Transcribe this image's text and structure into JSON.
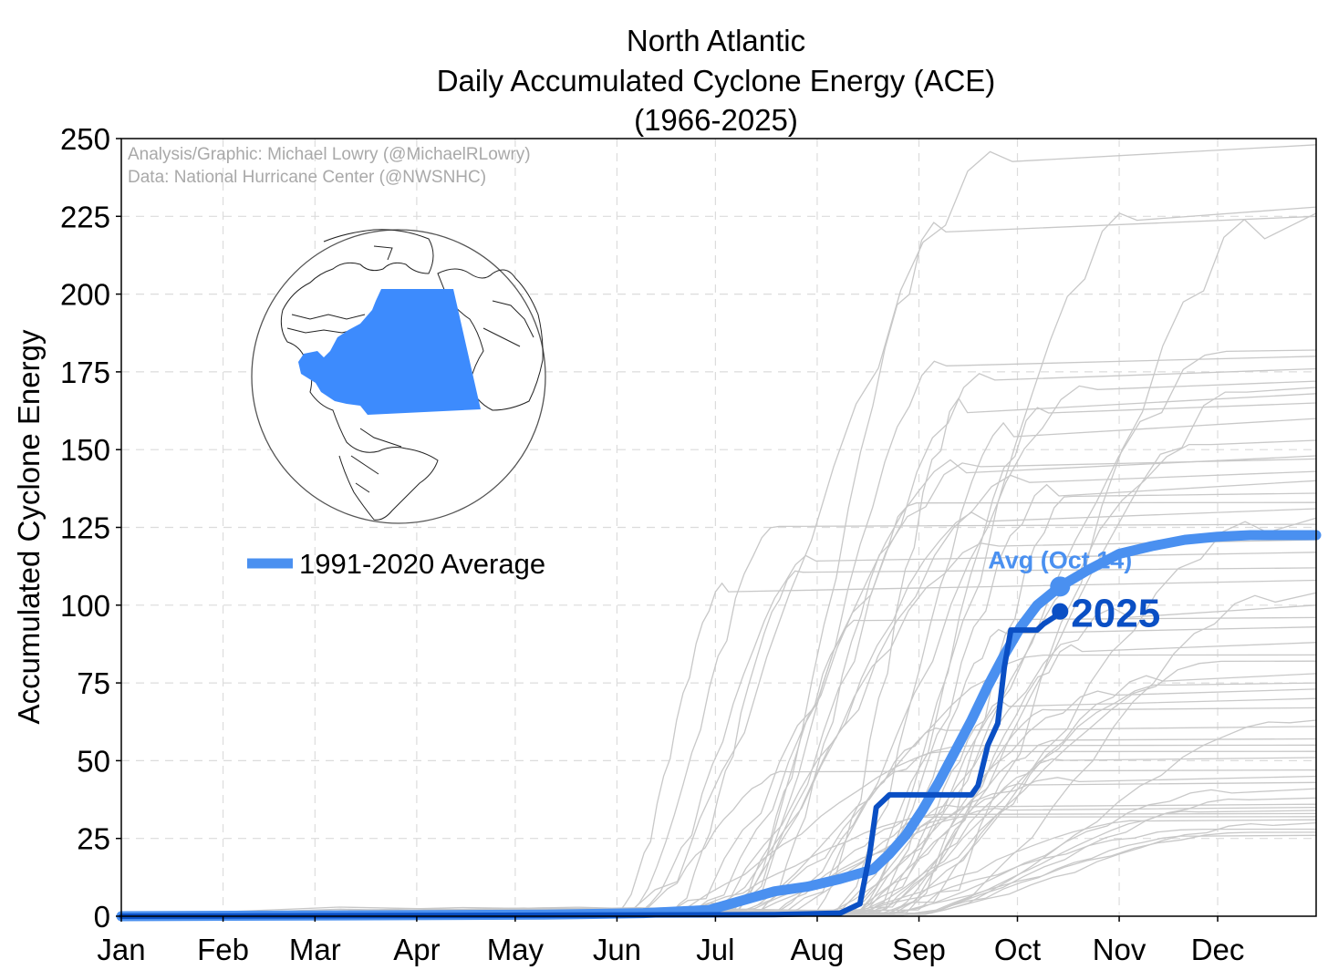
{
  "chart_data": {
    "type": "line",
    "title": [
      "North Atlantic",
      "Daily Accumulated Cyclone Energy (ACE)",
      "(1966-2025)"
    ],
    "ylabel": "Accumulated Cyclone Energy",
    "xlabel": "",
    "ylim": [
      0,
      250
    ],
    "xlim": [
      1,
      365
    ],
    "yticks": [
      0,
      25,
      50,
      75,
      100,
      125,
      150,
      175,
      200,
      225,
      250
    ],
    "xticks": [
      {
        "label": "Jan",
        "day": 1
      },
      {
        "label": "Feb",
        "day": 32
      },
      {
        "label": "Mar",
        "day": 60
      },
      {
        "label": "Apr",
        "day": 91
      },
      {
        "label": "May",
        "day": 121
      },
      {
        "label": "Jun",
        "day": 152
      },
      {
        "label": "Jul",
        "day": 182
      },
      {
        "label": "Aug",
        "day": 213
      },
      {
        "label": "Sep",
        "day": 244
      },
      {
        "label": "Oct",
        "day": 274
      },
      {
        "label": "Nov",
        "day": 305
      },
      {
        "label": "Dec",
        "day": 335
      }
    ],
    "grid": true,
    "credits": [
      "Analysis/Graphic: Michael Lowry (@MichaelRLowry)",
      "Data: National Hurricane Center (@NWSNHC)"
    ],
    "legend": {
      "label": "1991-2020 Average",
      "placement": "center-left"
    },
    "colors": {
      "average": "#4a90f0",
      "current": "#0a4fc4",
      "history": "#c8c8c8",
      "region": "#3d8bfd"
    },
    "series": [
      {
        "name": "1991-2020 Average",
        "role": "average",
        "x": [
          1,
          130,
          160,
          180,
          190,
          200,
          210,
          220,
          230,
          235,
          240,
          245,
          250,
          255,
          260,
          265,
          270,
          275,
          280,
          287,
          295,
          305,
          315,
          325,
          335,
          345,
          355,
          365
        ],
        "y": [
          0,
          0.5,
          1,
          2,
          5,
          8,
          9.5,
          12,
          15,
          20,
          26,
          34,
          43,
          53,
          63,
          74,
          84,
          93,
          100,
          106,
          111,
          116.5,
          119,
          121,
          122,
          122.5,
          122.5,
          122.5
        ]
      },
      {
        "name": "2025",
        "role": "current",
        "x": [
          1,
          200,
          220,
          222,
          226,
          229,
          231,
          233,
          235,
          240,
          255,
          260,
          262,
          265,
          268,
          270,
          272,
          280,
          282,
          285,
          287
        ],
        "y": [
          0,
          0.5,
          1,
          2,
          4,
          20,
          35,
          37,
          39,
          39,
          39,
          39,
          42,
          55,
          62,
          80,
          92,
          92,
          94,
          96,
          98
        ]
      }
    ],
    "annotations": [
      {
        "text": "Avg (Oct 14)",
        "x": 287,
        "y": 106,
        "series": "1991-2020 Average"
      },
      {
        "text": "2025",
        "x": 287,
        "y": 98,
        "series": "2025"
      }
    ],
    "history_endpoints": [
      248,
      228,
      226,
      225,
      182,
      180,
      176,
      172,
      170,
      168,
      165,
      160,
      153,
      148,
      147,
      143,
      140,
      136,
      133,
      131,
      128,
      126,
      121,
      117,
      112,
      108,
      104,
      100,
      96,
      93,
      88,
      84,
      82,
      78,
      75,
      73,
      70,
      67,
      63,
      61,
      57,
      55,
      53,
      51,
      47,
      45,
      43,
      41,
      38,
      36,
      35,
      34,
      33,
      32,
      31,
      30,
      28,
      27,
      26
    ]
  }
}
